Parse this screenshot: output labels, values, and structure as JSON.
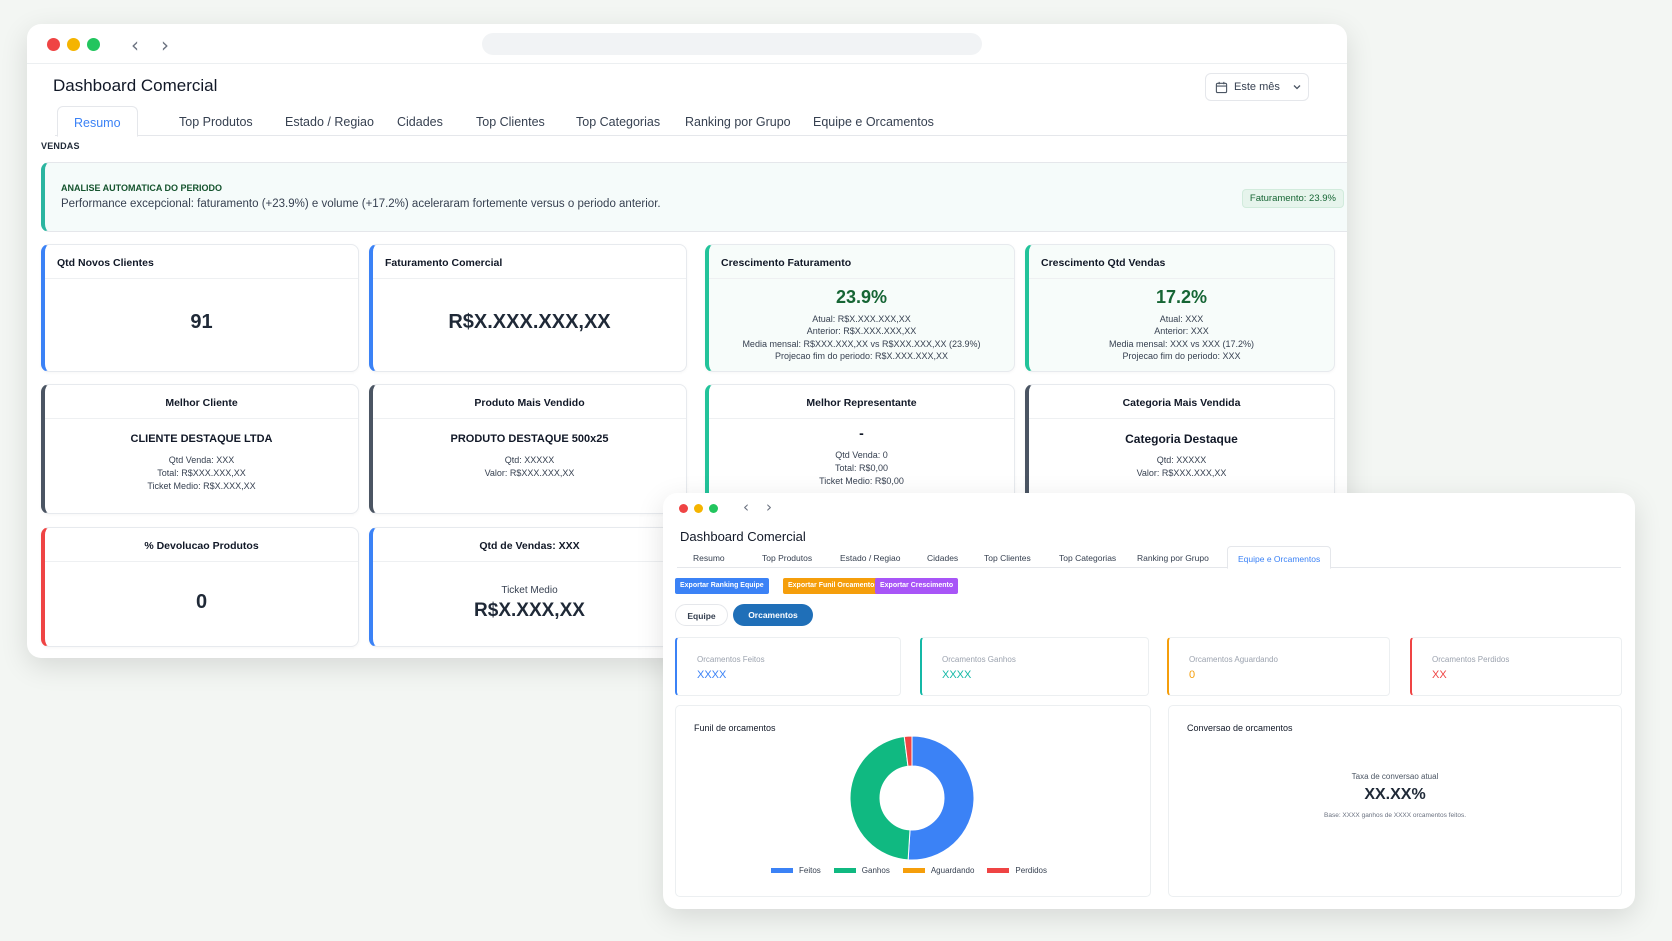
{
  "win1": {
    "title": "Dashboard Comercial",
    "period": "Este mês",
    "tabs": [
      "Resumo",
      "Top Produtos",
      "Estado / Regiao",
      "Cidades",
      "Top Clientes",
      "Top Categorias",
      "Ranking por Grupo",
      "Equipe e Orcamentos"
    ],
    "active_tab": "Resumo",
    "section": "VENDAS",
    "analysis": {
      "head": "ANALISE AUTOMATICA DO PERIODO",
      "text": "Performance excepcional: faturamento (+23.9%) e volume (+17.2%) aceleraram fortemente versus o periodo anterior.",
      "badge": "Faturamento: 23.9%"
    },
    "cards": {
      "novos_clientes": {
        "title": "Qtd Novos Clientes",
        "value": "91"
      },
      "faturamento": {
        "title": "Faturamento Comercial",
        "value": "R$X.XXX.XXX,XX"
      },
      "cresc_fat": {
        "title": "Crescimento Faturamento",
        "value": "23.9%",
        "l1": "Atual: R$X.XXX.XXX,XX",
        "l2": "Anterior: R$X.XXX.XXX,XX",
        "l3": "Media mensal: R$XXX.XXX,XX vs R$XXX.XXX,XX (23.9%)",
        "l4": "Projecao fim do periodo: R$X.XXX.XXX,XX"
      },
      "cresc_qtd": {
        "title": "Crescimento Qtd Vendas",
        "value": "17.2%",
        "l1": "Atual: XXX",
        "l2": "Anterior: XXX",
        "l3": "Media mensal: XXX vs XXX (17.2%)",
        "l4": "Projecao fim do periodo: XXX"
      },
      "melhor_cliente": {
        "title": "Melhor Cliente",
        "name": "CLIENTE DESTAQUE LTDA",
        "l1": "Qtd Venda: XXX",
        "l2": "Total: R$XXX.XXX,XX",
        "l3": "Ticket Medio: R$X.XXX,XX"
      },
      "produto": {
        "title": "Produto Mais Vendido",
        "name": "PRODUTO DESTAQUE 500x25",
        "l1": "Qtd: XXXXX",
        "l2": "Valor: R$XXX.XXX,XX"
      },
      "representante": {
        "title": "Melhor Representante",
        "name": "-",
        "l1": "Qtd Venda: 0",
        "l2": "Total: R$0,00",
        "l3": "Ticket Medio: R$0,00"
      },
      "categoria": {
        "title": "Categoria Mais Vendida",
        "name": "Categoria Destaque",
        "l1": "Qtd: XXXXX",
        "l2": "Valor: R$XXX.XXX,XX"
      },
      "devolucao": {
        "title": "% Devolucao Produtos",
        "value": "0"
      },
      "qtd_vendas": {
        "title": "Qtd de Vendas: XXX",
        "sub": "Ticket Medio",
        "value": "R$X.XXX,XX"
      }
    }
  },
  "win2": {
    "title": "Dashboard Comercial",
    "tabs": [
      "Resumo",
      "Top Produtos",
      "Estado / Regiao",
      "Cidades",
      "Top Clientes",
      "Top Categorias",
      "Ranking por Grupo",
      "Equipe e Orcamentos"
    ],
    "active_tab": "Equipe e Orcamentos",
    "export_buttons": [
      {
        "label": "Exportar Ranking Equipe",
        "color": "#3b82f6"
      },
      {
        "label": "Exportar Funil Orcamentos",
        "color": "#f59e0b"
      },
      {
        "label": "Exportar Crescimento",
        "color": "#a855f7"
      }
    ],
    "toggles": [
      "Equipe",
      "Orcamentos"
    ],
    "active_toggle": "Orcamentos",
    "kpis": [
      {
        "label": "Orcamentos Feitos",
        "value": "XXXX",
        "color": "#3b82f6"
      },
      {
        "label": "Orcamentos Ganhos",
        "value": "XXXX",
        "color": "#14b8a6"
      },
      {
        "label": "Orcamentos Aguardando",
        "value": "0",
        "color": "#f59e0b"
      },
      {
        "label": "Orcamentos Perdidos",
        "value": "XX",
        "color": "#ef4444"
      }
    ],
    "funnel_title": "Funil de orcamentos",
    "conversion": {
      "title": "Conversao de orcamentos",
      "label": "Taxa de conversao atual",
      "value": "XX.XX%",
      "base": "Base: XXXX ganhos de XXXX orcamentos feitos."
    }
  },
  "chart_data": {
    "type": "pie",
    "donut": true,
    "title": "Funil de orcamentos",
    "categories": [
      "Feitos",
      "Ganhos",
      "Aguardando",
      "Perdidos"
    ],
    "values": [
      51,
      47,
      0,
      2
    ],
    "colors": [
      "#3b82f6",
      "#10b981",
      "#f59e0b",
      "#ef4444"
    ],
    "legend": "bottom"
  }
}
